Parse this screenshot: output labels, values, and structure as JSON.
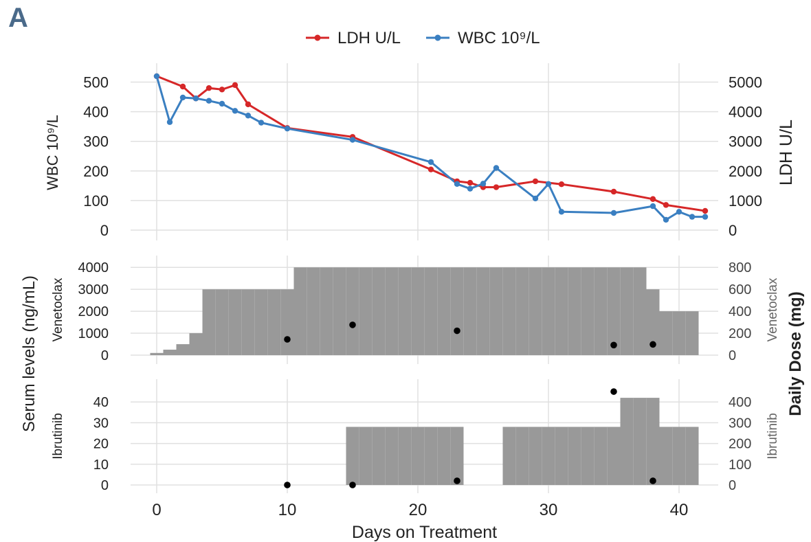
{
  "panel_label": "A",
  "colors": {
    "ldh": "#d62728",
    "wbc": "#3a7fc1",
    "bar": "#999999",
    "grid": "#e0e0e0",
    "dot": "#000000"
  },
  "chart_data": [
    {
      "type": "line",
      "legend": [
        "LDH U/L",
        "WBC 10⁹/L"
      ],
      "legend_placement": "top-center",
      "xlim": [
        -2,
        43
      ],
      "ylabel_left": "WBC 10⁹/L",
      "ylabel_right": "LDH U/L",
      "ylim_left": [
        0,
        550
      ],
      "ylim_right": [
        0,
        5500
      ],
      "yticks_left": [
        0,
        100,
        200,
        300,
        400,
        500
      ],
      "yticks_right": [
        0,
        1000,
        2000,
        3000,
        4000,
        5000
      ],
      "series": [
        {
          "name": "LDH U/L",
          "axis": "right",
          "x": [
            0,
            2,
            3,
            4,
            5,
            6,
            7,
            10,
            15,
            21,
            23,
            24,
            25,
            26,
            29,
            31,
            35,
            38,
            39,
            42
          ],
          "y": [
            5200,
            4850,
            4450,
            4800,
            4750,
            4900,
            4250,
            3450,
            3150,
            2050,
            1650,
            1600,
            1450,
            1450,
            1650,
            1550,
            1300,
            1050,
            850,
            650
          ]
        },
        {
          "name": "WBC 10⁹/L",
          "axis": "left",
          "x": [
            0,
            1,
            2,
            3,
            4,
            5,
            6,
            7,
            8,
            10,
            15,
            21,
            23,
            24,
            25,
            26,
            29,
            30,
            31,
            35,
            38,
            39,
            40,
            41,
            42
          ],
          "y": [
            520,
            365,
            448,
            445,
            437,
            427,
            403,
            387,
            363,
            343,
            305,
            230,
            156,
            140,
            157,
            210,
            107,
            156,
            62,
            58,
            81,
            35,
            62,
            45,
            45
          ]
        }
      ]
    },
    {
      "type": "bar",
      "ylabel_left": "Venetoclax",
      "ylabel_right": "Venetoclax",
      "ylim_left": [
        0,
        4100
      ],
      "ylim_right": [
        0,
        820
      ],
      "yticks_left": [
        0,
        1000,
        2000,
        3000,
        4000
      ],
      "yticks_right": [
        0,
        200,
        400,
        600,
        800
      ],
      "dose_steps": [
        {
          "x0": -0.5,
          "x1": 0.5,
          "dose": 20
        },
        {
          "x0": 0.5,
          "x1": 1.5,
          "dose": 50
        },
        {
          "x0": 1.5,
          "x1": 2.5,
          "dose": 100
        },
        {
          "x0": 2.5,
          "x1": 3.5,
          "dose": 200
        },
        {
          "x0": 3.5,
          "x1": 10.5,
          "dose": 600
        },
        {
          "x0": 10.5,
          "x1": 37.5,
          "dose": 800
        },
        {
          "x0": 37.5,
          "x1": 38.5,
          "dose": 600
        },
        {
          "x0": 38.5,
          "x1": 41.5,
          "dose": 400
        }
      ],
      "serum_levels": {
        "x": [
          10,
          15,
          23,
          35,
          38
        ],
        "y": [
          720,
          1380,
          1110,
          460,
          490
        ]
      }
    },
    {
      "type": "bar",
      "ylabel_left": "Ibrutinib",
      "ylabel_right": "Ibrutinib",
      "ylim_left": [
        0,
        46
      ],
      "ylim_right": [
        0,
        460
      ],
      "yticks_left": [
        0,
        10,
        20,
        30,
        40
      ],
      "yticks_right": [
        0,
        100,
        200,
        300,
        400
      ],
      "dose_steps": [
        {
          "x0": 14.5,
          "x1": 23.5,
          "dose": 280
        },
        {
          "x0": 26.5,
          "x1": 35.5,
          "dose": 280
        },
        {
          "x0": 35.5,
          "x1": 38.5,
          "dose": 420
        },
        {
          "x0": 38.5,
          "x1": 41.5,
          "dose": 280
        }
      ],
      "serum_levels": {
        "x": [
          10,
          15,
          23,
          35,
          38
        ],
        "y": [
          0,
          0,
          2,
          45,
          2
        ]
      }
    }
  ],
  "shared": {
    "xlabel": "Days on Treatment",
    "xticks": [
      0,
      10,
      20,
      30,
      40
    ],
    "left_outer_label": "Serum levels (ng/mL)",
    "right_outer_label": "Daily Dose (mg)"
  }
}
